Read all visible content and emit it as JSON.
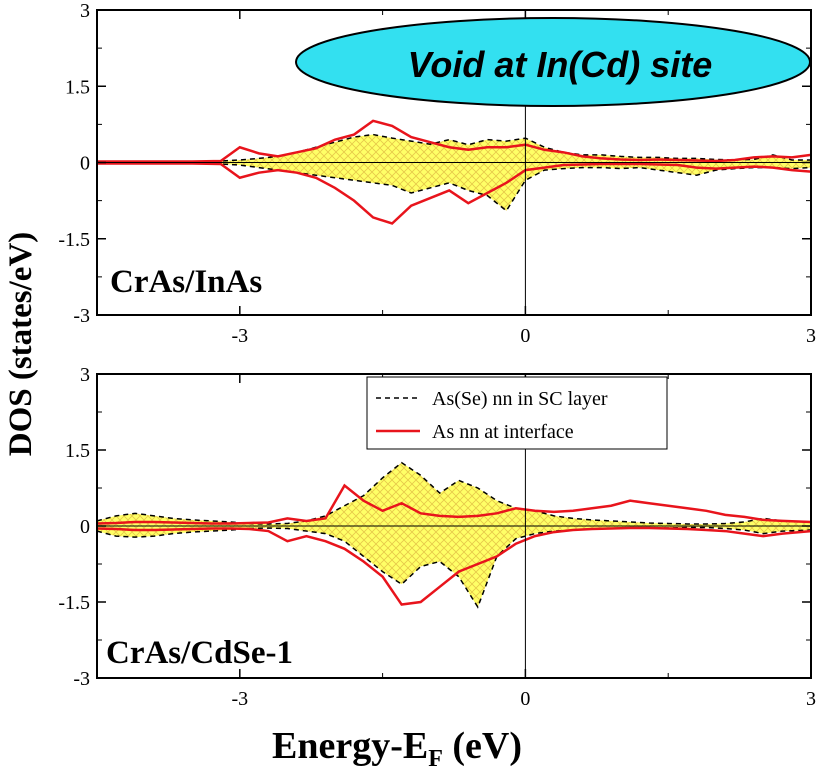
{
  "colors": {
    "solid_series": "#e8141c",
    "dashed_series": "#000000",
    "fill": "#ffff66",
    "hatch": "#e6c84a",
    "banner_fill": "#33e0f0"
  },
  "banner": {
    "text": "Void at In(Cd) site"
  },
  "axes": {
    "ylabel": "DOS (states/eV)",
    "xlabel_main": "Energy-E",
    "xlabel_sub": "F",
    "xlabel_tail": " (eV)"
  },
  "legend": {
    "dashed_label": "As(Se) nn in SC layer",
    "solid_label": "As nn at interface"
  },
  "chart_data": [
    {
      "type": "line",
      "panel": "top",
      "label": "CrAs/InAs",
      "xlim": [
        -4.5,
        3
      ],
      "ylim": [
        -3,
        3
      ],
      "xticks": [
        -3,
        0,
        3
      ],
      "xtick_labels": [
        "-3",
        "0",
        "3"
      ],
      "yticks": [
        -3,
        -1.5,
        0,
        1.5,
        3
      ],
      "ytick_labels": [
        "-3",
        "-1.5",
        "0",
        "1.5",
        "3"
      ],
      "x": [
        -4.5,
        -4.0,
        -3.5,
        -3.2,
        -3.0,
        -2.8,
        -2.6,
        -2.4,
        -2.2,
        -2.0,
        -1.8,
        -1.6,
        -1.4,
        -1.2,
        -1.0,
        -0.8,
        -0.6,
        -0.4,
        -0.2,
        0.0,
        0.2,
        0.4,
        0.6,
        0.8,
        1.0,
        1.2,
        1.4,
        1.6,
        1.8,
        2.0,
        2.2,
        2.4,
        2.6,
        2.8,
        3.0
      ],
      "series": [
        {
          "name": "As(Se) nn in SC layer",
          "style": "dashed",
          "up": [
            0.02,
            0.02,
            0.02,
            0.03,
            0.05,
            0.08,
            0.12,
            0.2,
            0.3,
            0.4,
            0.5,
            0.55,
            0.48,
            0.42,
            0.36,
            0.45,
            0.35,
            0.45,
            0.42,
            0.48,
            0.3,
            0.2,
            0.15,
            0.15,
            0.12,
            0.1,
            0.1,
            0.08,
            0.08,
            0.06,
            0.05,
            0.06,
            0.15,
            0.05,
            0.05
          ],
          "down": [
            -0.02,
            -0.02,
            -0.02,
            -0.03,
            -0.05,
            -0.1,
            -0.15,
            -0.2,
            -0.25,
            -0.3,
            -0.35,
            -0.4,
            -0.45,
            -0.6,
            -0.5,
            -0.4,
            -0.55,
            -0.65,
            -0.95,
            -0.35,
            -0.15,
            -0.12,
            -0.1,
            -0.1,
            -0.12,
            -0.1,
            -0.15,
            -0.2,
            -0.25,
            -0.15,
            -0.12,
            -0.1,
            -0.1,
            -0.12,
            -0.1
          ]
        },
        {
          "name": "As nn at interface",
          "style": "solid",
          "up": [
            0.02,
            0.02,
            0.02,
            0.03,
            0.3,
            0.18,
            0.12,
            0.2,
            0.28,
            0.45,
            0.55,
            0.82,
            0.72,
            0.5,
            0.4,
            0.3,
            0.25,
            0.3,
            0.3,
            0.35,
            0.25,
            0.2,
            0.12,
            0.08,
            0.06,
            0.05,
            0.06,
            0.05,
            0.04,
            0.03,
            0.05,
            0.1,
            0.12,
            0.1,
            0.15
          ],
          "down": [
            -0.02,
            -0.02,
            -0.02,
            -0.03,
            -0.3,
            -0.2,
            -0.15,
            -0.2,
            -0.3,
            -0.5,
            -0.75,
            -1.08,
            -1.2,
            -0.85,
            -0.7,
            -0.55,
            -0.8,
            -0.6,
            -0.4,
            -0.15,
            -0.1,
            -0.05,
            -0.04,
            -0.03,
            -0.03,
            -0.03,
            -0.04,
            -0.05,
            -0.1,
            -0.12,
            -0.1,
            -0.08,
            -0.1,
            -0.15,
            -0.18
          ]
        }
      ]
    },
    {
      "type": "line",
      "panel": "bottom",
      "label": "CrAs/CdSe-1",
      "xlim": [
        -4.5,
        3
      ],
      "ylim": [
        -3,
        3
      ],
      "xticks": [
        -3,
        0,
        3
      ],
      "xtick_labels": [
        "-3",
        "0",
        "3"
      ],
      "yticks": [
        -3,
        -1.5,
        0,
        1.5,
        3
      ],
      "ytick_labels": [
        "-3",
        "-1.5",
        "0",
        "1.5",
        "3"
      ],
      "x": [
        -4.5,
        -4.3,
        -4.1,
        -3.9,
        -3.7,
        -3.5,
        -3.3,
        -3.1,
        -2.9,
        -2.7,
        -2.5,
        -2.3,
        -2.1,
        -1.9,
        -1.7,
        -1.5,
        -1.3,
        -1.1,
        -0.9,
        -0.7,
        -0.5,
        -0.3,
        -0.1,
        0.1,
        0.3,
        0.5,
        0.7,
        0.9,
        1.1,
        1.3,
        1.5,
        1.7,
        1.9,
        2.1,
        2.3,
        2.5,
        2.7,
        3.0
      ],
      "series": [
        {
          "name": "As(Se) nn in SC layer",
          "style": "dashed",
          "up": [
            0.1,
            0.2,
            0.25,
            0.2,
            0.15,
            0.12,
            0.1,
            0.08,
            0.05,
            0.04,
            0.05,
            0.1,
            0.2,
            0.4,
            0.6,
            0.95,
            1.25,
            1.0,
            0.65,
            0.9,
            0.75,
            0.5,
            0.35,
            0.3,
            0.2,
            0.15,
            0.12,
            0.1,
            0.08,
            0.06,
            0.05,
            0.04,
            0.04,
            0.05,
            0.08,
            0.15,
            0.1,
            0.08
          ],
          "down": [
            -0.1,
            -0.2,
            -0.22,
            -0.2,
            -0.15,
            -0.12,
            -0.1,
            -0.08,
            -0.05,
            -0.04,
            -0.05,
            -0.1,
            -0.15,
            -0.3,
            -0.6,
            -0.9,
            -1.15,
            -0.8,
            -0.7,
            -1.0,
            -1.6,
            -0.6,
            -0.25,
            -0.15,
            -0.1,
            -0.08,
            -0.06,
            -0.05,
            -0.04,
            -0.04,
            -0.04,
            -0.03,
            -0.03,
            -0.05,
            -0.08,
            -0.15,
            -0.1,
            -0.08
          ]
        },
        {
          "name": "As nn at interface",
          "style": "solid",
          "up": [
            0.05,
            0.06,
            0.08,
            0.08,
            0.07,
            0.06,
            0.05,
            0.05,
            0.06,
            0.07,
            0.15,
            0.1,
            0.15,
            0.8,
            0.5,
            0.3,
            0.45,
            0.25,
            0.2,
            0.18,
            0.2,
            0.25,
            0.35,
            0.3,
            0.28,
            0.3,
            0.35,
            0.4,
            0.5,
            0.45,
            0.4,
            0.35,
            0.3,
            0.22,
            0.18,
            0.12,
            0.1,
            0.08
          ],
          "down": [
            -0.05,
            -0.06,
            -0.08,
            -0.08,
            -0.07,
            -0.06,
            -0.05,
            -0.05,
            -0.06,
            -0.1,
            -0.3,
            -0.2,
            -0.3,
            -0.45,
            -0.7,
            -1.0,
            -1.55,
            -1.5,
            -1.2,
            -0.9,
            -0.75,
            -0.6,
            -0.35,
            -0.2,
            -0.12,
            -0.08,
            -0.06,
            -0.05,
            -0.04,
            -0.04,
            -0.05,
            -0.06,
            -0.08,
            -0.1,
            -0.15,
            -0.2,
            -0.15,
            -0.1
          ]
        }
      ]
    }
  ]
}
